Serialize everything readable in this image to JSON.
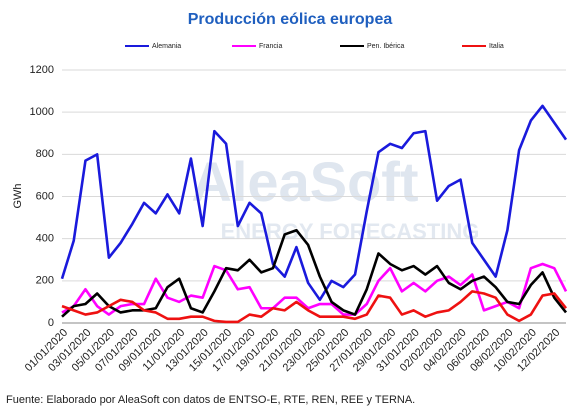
{
  "chart_data": {
    "type": "line",
    "title": "Producción eólica europea",
    "y_label": "GWh",
    "source": "Fuente: Elaborado por AleaSoft con datos de ENTSO-E, RTE, REN, REE y TERNA.",
    "watermark": [
      "AleaSoft",
      "ENERGY FORECASTING"
    ],
    "categories": [
      "01/01/2020",
      null,
      "03/01/2020",
      null,
      "05/01/2020",
      null,
      "07/01/2020",
      null,
      "09/01/2020",
      null,
      "11/01/2020",
      null,
      "13/01/2020",
      null,
      "15/01/2020",
      null,
      "17/01/2020",
      null,
      "19/01/2020",
      null,
      "21/01/2020",
      null,
      "23/01/2020",
      null,
      "25/01/2020",
      null,
      "27/01/2020",
      null,
      "29/01/2020",
      null,
      "31/01/2020",
      null,
      "02/02/2020",
      null,
      "04/02/2020",
      null,
      "06/02/2020",
      null,
      "08/02/2020",
      null,
      "10/02/2020",
      null,
      "12/02/2020",
      null
    ],
    "series": [
      {
        "name": "Alemania",
        "color": "#1a1adc",
        "values": [
          210,
          390,
          770,
          800,
          310,
          380,
          470,
          570,
          520,
          610,
          520,
          780,
          460,
          910,
          850,
          460,
          570,
          520,
          280,
          220,
          360,
          190,
          110,
          200,
          170,
          230,
          530,
          810,
          850,
          830,
          900,
          910,
          580,
          650,
          680,
          380,
          300,
          220,
          440,
          820,
          960,
          1030,
          950,
          870
        ]
      },
      {
        "name": "Francia",
        "color": "#ff00ff",
        "values": [
          50,
          80,
          160,
          80,
          40,
          80,
          90,
          90,
          210,
          120,
          100,
          130,
          120,
          270,
          250,
          160,
          170,
          70,
          70,
          120,
          120,
          70,
          90,
          90,
          40,
          40,
          90,
          200,
          260,
          150,
          190,
          150,
          200,
          220,
          180,
          230,
          60,
          80,
          100,
          70,
          260,
          280,
          260,
          150
        ]
      },
      {
        "name": "Pen. Ibérica",
        "color": "#000000",
        "values": [
          30,
          80,
          90,
          140,
          80,
          50,
          60,
          60,
          70,
          170,
          210,
          70,
          50,
          150,
          260,
          250,
          300,
          240,
          260,
          420,
          440,
          370,
          220,
          100,
          60,
          40,
          160,
          330,
          280,
          250,
          270,
          230,
          270,
          190,
          160,
          200,
          220,
          170,
          100,
          90,
          180,
          240,
          120,
          50
        ]
      },
      {
        "name": "Italia",
        "color": "#ee1111",
        "values": [
          80,
          60,
          40,
          50,
          80,
          110,
          100,
          60,
          50,
          20,
          20,
          30,
          30,
          10,
          5,
          5,
          40,
          30,
          70,
          60,
          100,
          60,
          30,
          30,
          30,
          20,
          40,
          130,
          120,
          40,
          60,
          30,
          50,
          60,
          100,
          150,
          140,
          120,
          40,
          10,
          40,
          130,
          140,
          70
        ]
      }
    ],
    "ylim": [
      0,
      1200
    ],
    "yticks": [
      0,
      200,
      400,
      600,
      800,
      1000,
      1200
    ],
    "grid": true
  }
}
